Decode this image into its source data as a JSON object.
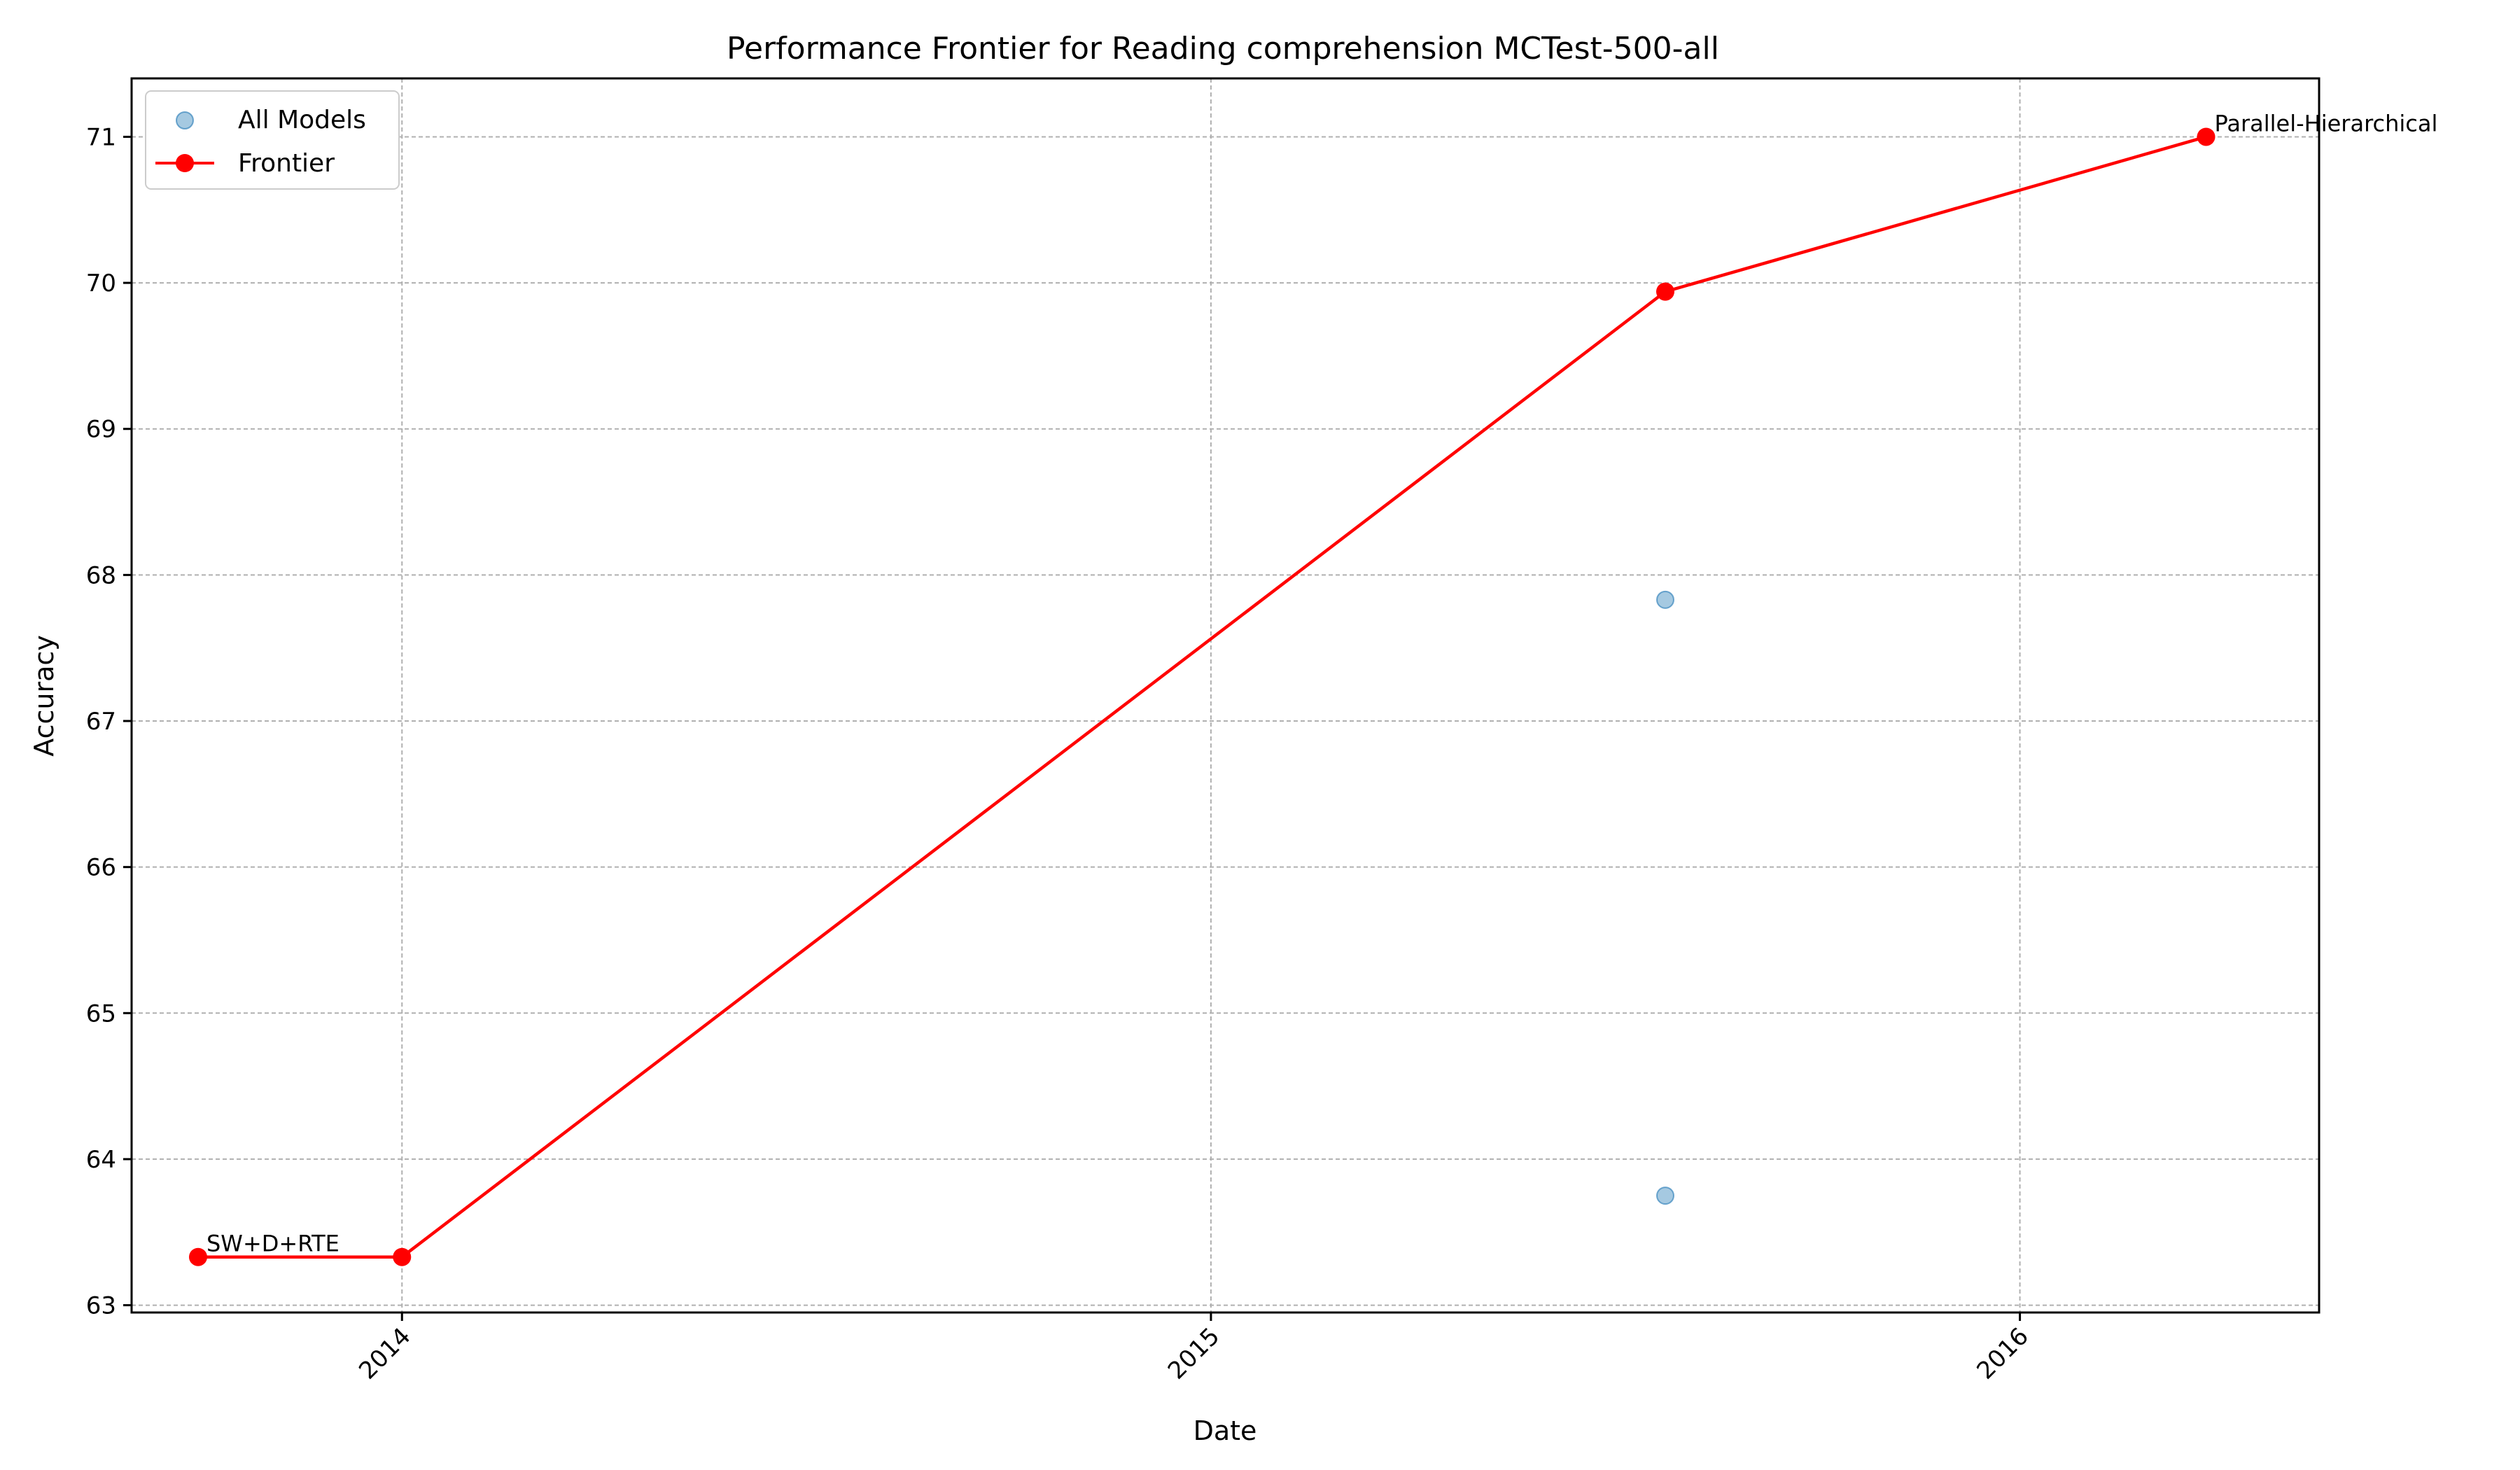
{
  "chart_data": {
    "type": "scatter",
    "title": "Performance Frontier for Reading comprehension MCTest-500-all",
    "xlabel": "Date",
    "ylabel": "Accuracy",
    "x_axis": "date",
    "xlim": [
      "2013-09-01",
      "2016-05-15"
    ],
    "ylim": [
      62.95,
      71.4
    ],
    "x_ticks": [
      {
        "date": "2014-01-01",
        "label": "2014"
      },
      {
        "date": "2015-01-01",
        "label": "2015"
      },
      {
        "date": "2016-01-01",
        "label": "2016"
      }
    ],
    "y_ticks": [
      63,
      64,
      65,
      66,
      67,
      68,
      69,
      70,
      71
    ],
    "grid": true,
    "legend_position": "top-left",
    "series": [
      {
        "name": "All Models",
        "kind": "scatter",
        "color": "#1f77b4",
        "points": [
          {
            "x": "2015-07-25",
            "y": 67.83
          },
          {
            "x": "2015-07-25",
            "y": 63.75
          }
        ]
      },
      {
        "name": "Frontier",
        "kind": "line",
        "color": "#ff0000",
        "points": [
          {
            "x": "2013-10-01",
            "y": 63.33
          },
          {
            "x": "2014-01-01",
            "y": 63.33
          },
          {
            "x": "2015-07-25",
            "y": 69.94
          },
          {
            "x": "2016-03-25",
            "y": 71.0
          }
        ]
      }
    ],
    "annotations": [
      {
        "text": "SW+D+RTE",
        "x": "2013-10-01",
        "y": 63.33
      },
      {
        "text": "Parallel-Hierarchical",
        "x": "2016-03-25",
        "y": 71.0
      }
    ]
  }
}
